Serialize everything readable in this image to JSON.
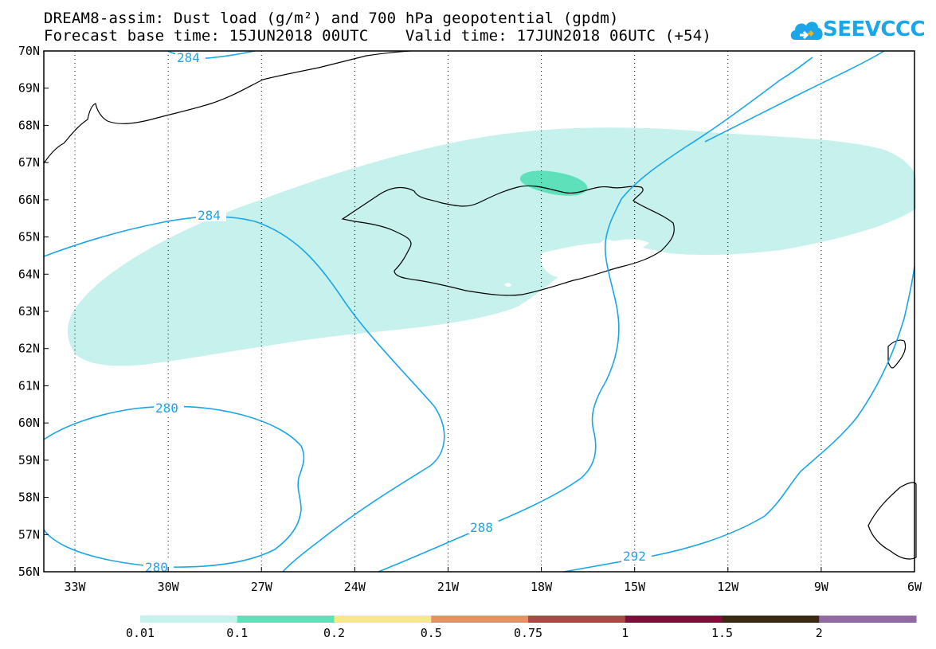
{
  "title": {
    "line1": "DREAM8-assim: Dust load (g/m²) and 700 hPa geopotential (gpdm)",
    "line2": "Forecast base time: 15JUN2018 00UTC    Valid time: 17JUN2018 06UTC (+54)"
  },
  "logo": {
    "text": "SEEVCCC",
    "icon": "cloud-icon"
  },
  "map": {
    "lon_range": [
      -34,
      -6
    ],
    "lat_range": [
      56,
      70
    ],
    "lat_ticks": [
      "70N",
      "69N",
      "68N",
      "67N",
      "66N",
      "65N",
      "64N",
      "63N",
      "62N",
      "61N",
      "60N",
      "59N",
      "58N",
      "57N",
      "56N"
    ],
    "lon_ticks": [
      "33W",
      "30W",
      "27W",
      "24W",
      "21W",
      "18W",
      "15W",
      "12W",
      "9W",
      "6W"
    ],
    "grid": "dotted",
    "contour_labels": [
      "284",
      "284",
      "280",
      "280",
      "288",
      "292"
    ],
    "contour_color": "#1aa6e8"
  },
  "colorbar": {
    "labels": [
      "0.01",
      "0.1",
      "0.2",
      "0.5",
      "0.75",
      "1",
      "1.5",
      "2"
    ],
    "colors": [
      "#c6f1ec",
      "#5ee0bb",
      "#f6e98a",
      "#e88f6a",
      "#a64b45",
      "#830d3a",
      "#3a2a14",
      "#8f6aa3"
    ]
  }
}
